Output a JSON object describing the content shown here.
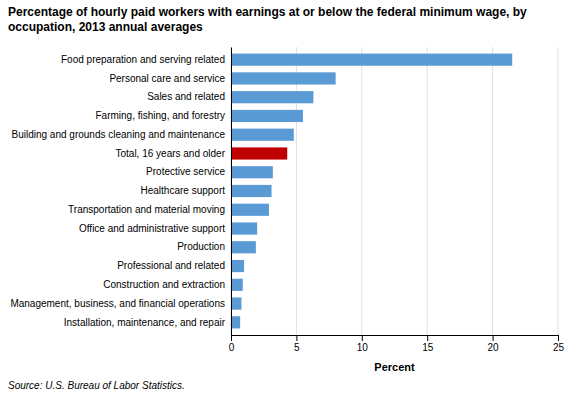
{
  "chart_data": {
    "type": "bar",
    "orientation": "horizontal",
    "title": "Percentage of hourly paid workers with earnings at or below the federal minimum wage, by occupation, 2013 annual averages",
    "x_label": "Percent",
    "source": "Source: U.S. Bureau of Labor Statistics.",
    "categories": [
      "Installation, maintenance, and repair",
      "Management, business, and financial operations",
      "Construction and extraction",
      "Professional and related",
      "Production",
      "Office and administrative support",
      "Transportation and material moving",
      "Healthcare support",
      "Protective service",
      "Total, 16 years and older",
      "Building and grounds cleaning and maintenance",
      "Farming, fishing, and forestry",
      "Sales and related",
      "Personal care and service",
      "Food preparation and serving related"
    ],
    "values": [
      0.7,
      0.8,
      0.9,
      1.0,
      1.9,
      2.0,
      2.9,
      3.1,
      3.2,
      4.3,
      4.8,
      5.5,
      6.3,
      8.0,
      21.5
    ],
    "colors": [
      "#5B9BD5",
      "#5B9BD5",
      "#5B9BD5",
      "#5B9BD5",
      "#5B9BD5",
      "#5B9BD5",
      "#5B9BD5",
      "#5B9BD5",
      "#5B9BD5",
      "#C00000",
      "#5B9BD5",
      "#5B9BD5",
      "#5B9BD5",
      "#5B9BD5",
      "#5B9BD5"
    ],
    "xlim": [
      0,
      25
    ],
    "xticks": [
      0,
      5,
      10,
      15,
      20,
      25
    ],
    "grid": true
  }
}
